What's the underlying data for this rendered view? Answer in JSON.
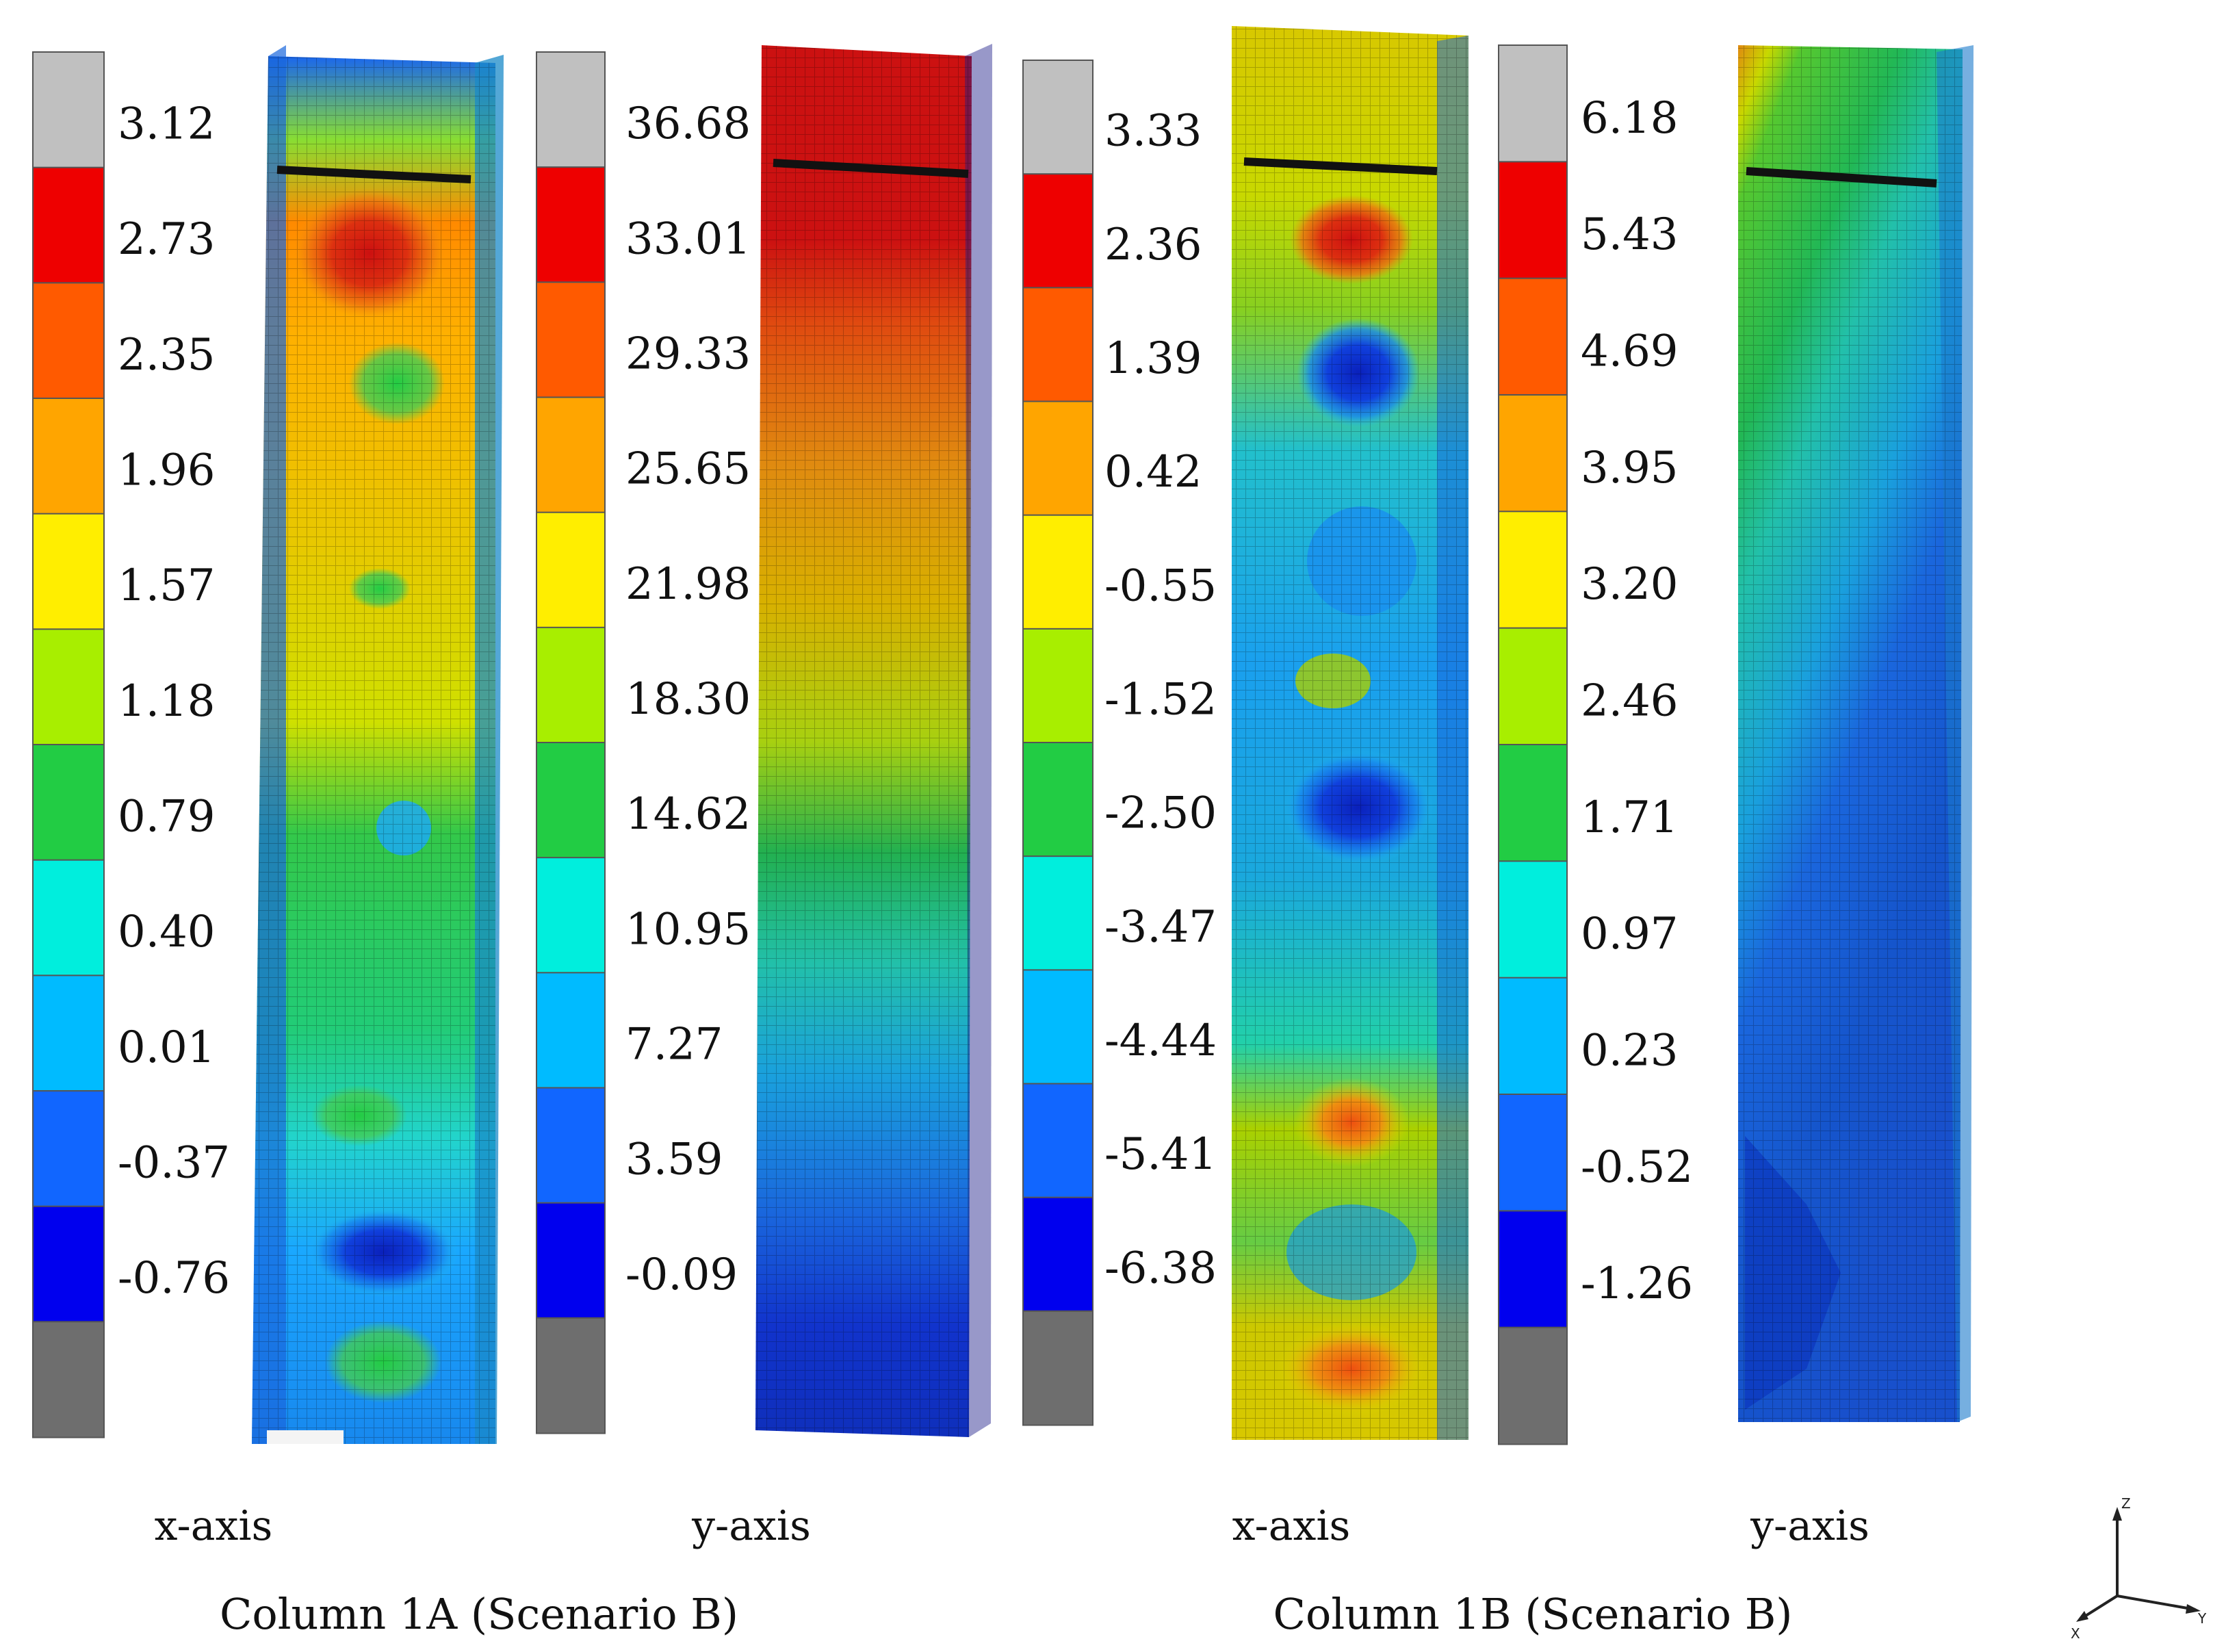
{
  "colors": {
    "over": "#c0c0c0",
    "under": "#6e6e6e",
    "bands": [
      "#ee0000",
      "#ff5a00",
      "#ffa500",
      "#ffee00",
      "#a8ee00",
      "#22cc44",
      "#00eedd",
      "#00bbff",
      "#1166ff",
      "#0000ee"
    ]
  },
  "legends": [
    {
      "id": "legend-1a-x",
      "ticks": [
        "3.12",
        "2.73",
        "2.35",
        "1.96",
        "1.57",
        "1.18",
        "0.79",
        "0.40",
        "0.01",
        "-0.37",
        "-0.76"
      ]
    },
    {
      "id": "legend-1a-y",
      "ticks": [
        "36.68",
        "33.01",
        "29.33",
        "25.65",
        "21.98",
        "18.30",
        "14.62",
        "10.95",
        "7.27",
        "3.59",
        "-0.09"
      ]
    },
    {
      "id": "legend-1b-x",
      "ticks": [
        "3.33",
        "2.36",
        "1.39",
        "0.42",
        "-0.55",
        "-1.52",
        "-2.50",
        "-3.47",
        "-4.44",
        "-5.41",
        "-6.38"
      ]
    },
    {
      "id": "legend-1b-y",
      "ticks": [
        "6.18",
        "5.43",
        "4.69",
        "3.95",
        "3.20",
        "2.46",
        "1.71",
        "0.97",
        "0.23",
        "-0.52",
        "-1.26"
      ]
    }
  ],
  "axis_labels": [
    "x-axis",
    "y-axis",
    "x-axis",
    "y-axis"
  ],
  "captions": [
    "Column 1A (Scenario B)",
    "Column 1B (Scenario B)"
  ],
  "triad": {
    "z": "Z",
    "y": "Y",
    "x": "X"
  }
}
